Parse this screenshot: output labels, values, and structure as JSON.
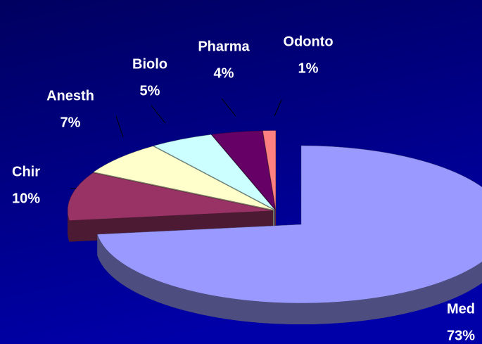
{
  "chart_data": {
    "type": "pie",
    "categories": [
      "Med",
      "Chir",
      "Anesth",
      "Biolo",
      "Pharma",
      "Odonto"
    ],
    "values": [
      73,
      10,
      7,
      5,
      4,
      1
    ],
    "value_labels": [
      "73%",
      "10%",
      "7%",
      "5%",
      "4%",
      "1%"
    ],
    "colors": [
      "#9999ff",
      "#993366",
      "#ffffcc",
      "#ccffff",
      "#660066",
      "#ff8080"
    ]
  }
}
